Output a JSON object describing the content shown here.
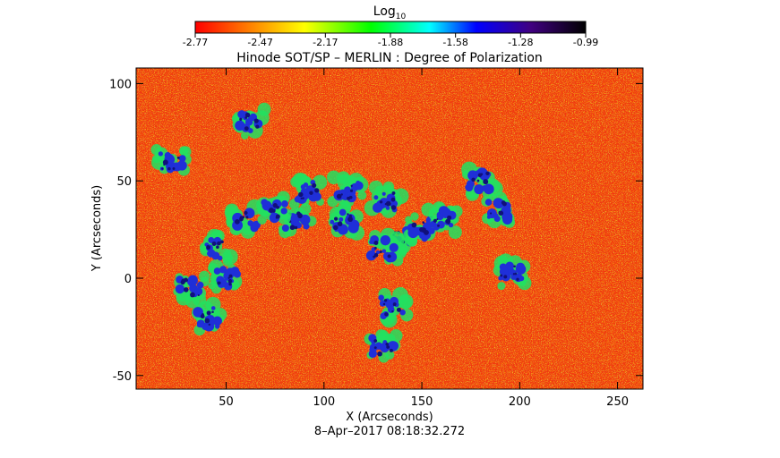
{
  "chart_data": {
    "type": "heatmap",
    "title": "Hinode SOT/SP – MERLIN : Degree of Polarization",
    "colorbar_title": "Log",
    "colorbar_subscript": "10",
    "colorbar_ticks": [
      "-2.77",
      "-2.47",
      "-2.17",
      "-1.88",
      "-1.58",
      "-1.28",
      "-0.99"
    ],
    "colorbar_range": [
      -2.77,
      -0.99
    ],
    "xlabel": "X (Arcseconds)",
    "ylabel": "Y (Arcseconds)",
    "x_ticks": [
      50,
      100,
      150,
      200,
      250
    ],
    "y_ticks": [
      -50,
      0,
      50,
      100
    ],
    "xlim": [
      4,
      263
    ],
    "ylim": [
      -57,
      108
    ],
    "timestamp": "8–Apr–2017 08:18:32.272",
    "colormap": [
      "#ff0000",
      "#ffa500",
      "#ffff00",
      "#00ff00",
      "#00ffff",
      "#0000ff",
      "#400080",
      "#000000"
    ],
    "high_polarization_regions": [
      {
        "x": 92,
        "y": 45
      },
      {
        "x": 86,
        "y": 30
      },
      {
        "x": 62,
        "y": 80
      },
      {
        "x": 45,
        "y": 15
      },
      {
        "x": 40,
        "y": -20
      },
      {
        "x": 32,
        "y": -5
      },
      {
        "x": 50,
        "y": 0
      },
      {
        "x": 180,
        "y": 50
      },
      {
        "x": 188,
        "y": 35
      },
      {
        "x": 140,
        "y": 20
      },
      {
        "x": 150,
        "y": 25
      },
      {
        "x": 130,
        "y": 15
      },
      {
        "x": 135,
        "y": -15
      },
      {
        "x": 130,
        "y": -35
      },
      {
        "x": 112,
        "y": 45
      },
      {
        "x": 132,
        "y": 40
      },
      {
        "x": 60,
        "y": 30
      },
      {
        "x": 22,
        "y": 60
      },
      {
        "x": 195,
        "y": 2
      },
      {
        "x": 110,
        "y": 30
      },
      {
        "x": 160,
        "y": 30
      },
      {
        "x": 75,
        "y": 35
      }
    ]
  }
}
